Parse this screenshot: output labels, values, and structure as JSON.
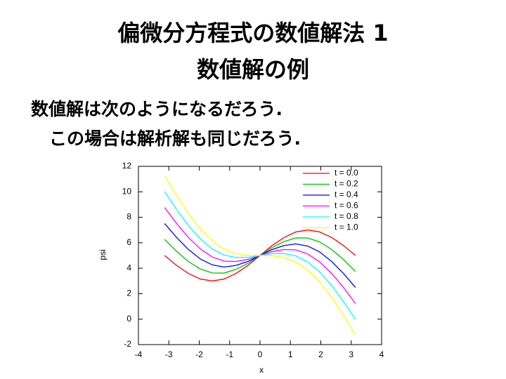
{
  "slide": {
    "title_lines": [
      "偏微分方程式の数値解法 1",
      "数値解の例"
    ],
    "bullets": [
      "数値解は次のようになるだろう.",
      "この場合は解析解も同じだろう."
    ]
  },
  "chart_data": {
    "type": "line",
    "x": [
      -3.14,
      -2.75,
      -2.36,
      -1.96,
      -1.57,
      -1.18,
      -0.79,
      -0.39,
      0,
      0.39,
      0.79,
      1.18,
      1.57,
      1.96,
      2.36,
      2.75,
      3.14
    ],
    "series": [
      {
        "name": "t = 0.0",
        "color": "#ff0000",
        "values": [
          5,
          4.23,
          3.59,
          3.15,
          3,
          3.15,
          3.59,
          4.23,
          5,
          5.77,
          6.41,
          6.85,
          7,
          6.85,
          6.41,
          5.77,
          5
        ]
      },
      {
        "name": "t = 0.2",
        "color": "#00c000",
        "values": [
          6.26,
          5.33,
          4.53,
          3.93,
          3.63,
          3.62,
          3.91,
          4.39,
          5,
          5.61,
          6.09,
          6.38,
          6.37,
          6.07,
          5.47,
          4.67,
          3.74
        ]
      },
      {
        "name": "t = 0.4",
        "color": "#0000ff",
        "values": [
          7.51,
          6.43,
          5.48,
          4.72,
          4.26,
          4.09,
          4.22,
          4.54,
          5,
          5.46,
          5.78,
          5.91,
          5.74,
          5.28,
          4.52,
          3.57,
          2.49
        ]
      },
      {
        "name": "t = 0.6",
        "color": "#ff00ff",
        "values": [
          8.77,
          7.53,
          6.42,
          5.5,
          4.88,
          4.56,
          4.53,
          4.7,
          5,
          5.3,
          5.47,
          5.44,
          5.12,
          4.5,
          3.58,
          2.47,
          1.23
        ]
      },
      {
        "name": "t = 0.8",
        "color": "#00ffff",
        "values": [
          10.02,
          8.63,
          7.36,
          6.29,
          5.51,
          5.03,
          4.85,
          4.86,
          5,
          5.14,
          5.15,
          4.97,
          4.49,
          3.71,
          2.64,
          1.37,
          -0.02
        ]
      },
      {
        "name": "t = 1.0",
        "color": "#ffff00",
        "values": [
          11.28,
          9.73,
          8.3,
          7.08,
          6.14,
          5.51,
          5.16,
          5.02,
          5,
          4.98,
          4.84,
          4.49,
          3.86,
          2.92,
          1.7,
          0.27,
          -1.28
        ]
      }
    ],
    "x_label": "x",
    "y_label": "psi",
    "xlim": [
      -4,
      4
    ],
    "xticks": [
      -4,
      -3,
      -2,
      -1,
      0,
      1,
      2,
      3,
      4
    ],
    "ylim": [
      -2,
      12
    ],
    "yticks": [
      -2,
      0,
      2,
      4,
      6,
      8,
      10,
      12
    ],
    "legend": "top-right"
  }
}
